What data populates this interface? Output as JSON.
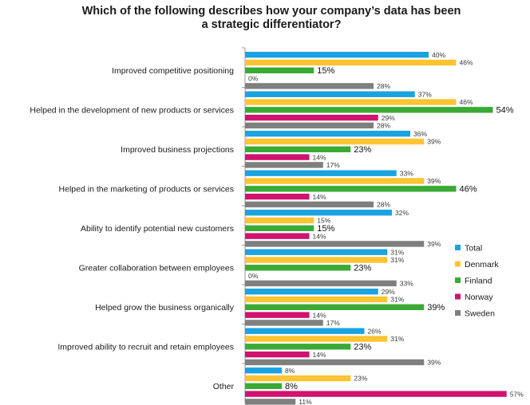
{
  "chart_data": {
    "type": "bar",
    "orientation": "horizontal",
    "title": "Which of the following describes how your company’s data has been a strategic differentiator?",
    "title_lines": [
      "Which of the following describes how your company’s data has been",
      "a strategic differentiator?"
    ],
    "categories": [
      "Improved competitive positioning",
      "Helped in the development of new products or services",
      "Improved business projections",
      "Helped in the marketing of products or services",
      "Ability to identify potential new customers",
      "Greater collaboration between employees",
      "Helped grow the business organically",
      "Improved ability to recruit and retain employees",
      "Other"
    ],
    "series": [
      {
        "name": "Total",
        "color": "#1aa3e0",
        "values": [
          40,
          37,
          36,
          33,
          32,
          31,
          29,
          26,
          8
        ]
      },
      {
        "name": "Denmark",
        "color": "#ffc431",
        "values": [
          46,
          46,
          39,
          39,
          15,
          31,
          31,
          31,
          23
        ]
      },
      {
        "name": "Finland",
        "color": "#3aaa35",
        "values": [
          15,
          54,
          23,
          46,
          15,
          23,
          39,
          23,
          8
        ]
      },
      {
        "name": "Norway",
        "color": "#d1126e",
        "values": [
          null,
          29,
          14,
          14,
          14,
          null,
          14,
          14,
          57
        ]
      },
      {
        "name": "Sweden",
        "color": "#7f7f7f",
        "values": [
          28,
          28,
          17,
          28,
          39,
          33,
          17,
          39,
          11
        ]
      }
    ],
    "value_suffix": "%",
    "extra_labels": [
      {
        "category_index": 0,
        "series": "Norway",
        "text": "0%"
      },
      {
        "category_index": 5,
        "series": "Norway",
        "text": "0%"
      }
    ],
    "xlim": [
      0,
      60
    ],
    "legend": "right",
    "grid": false
  }
}
